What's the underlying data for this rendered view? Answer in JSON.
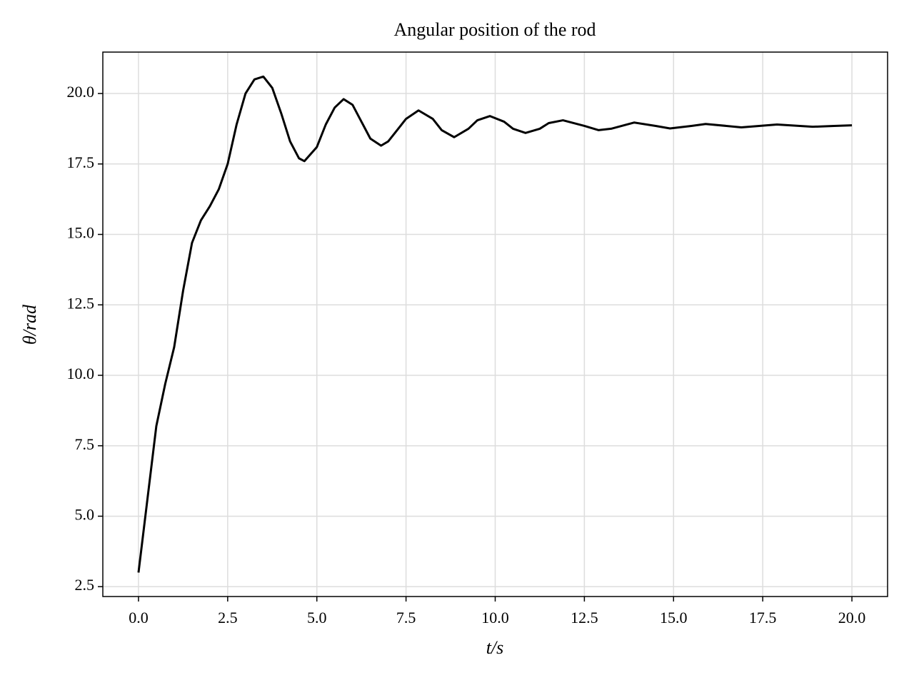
{
  "chart_data": {
    "type": "line",
    "title": "Angular position of the rod",
    "x_label": "t/s",
    "y_label": "θ/rad",
    "x": [
      0,
      0.25,
      0.5,
      0.75,
      1.0,
      1.25,
      1.5,
      1.75,
      2.0,
      2.25,
      2.5,
      2.75,
      3.0,
      3.25,
      3.5,
      3.75,
      4.0,
      4.25,
      4.5,
      4.65,
      5.0,
      5.25,
      5.5,
      5.75,
      6.0,
      6.25,
      6.5,
      6.8,
      7.0,
      7.25,
      7.5,
      7.85,
      8.25,
      8.5,
      8.85,
      9.25,
      9.5,
      9.85,
      10.25,
      10.5,
      10.85,
      11.25,
      11.5,
      11.9,
      12.5,
      12.9,
      13.25,
      13.9,
      14.5,
      14.9,
      15.5,
      15.9,
      16.9,
      17.9,
      18.9,
      19.5,
      20.0
    ],
    "series": [
      {
        "name": "theta",
        "color": "#000000",
        "values": [
          3.0,
          5.6,
          8.2,
          9.7,
          11.0,
          13.0,
          14.7,
          15.5,
          16.0,
          16.6,
          17.5,
          18.9,
          20.0,
          20.5,
          20.6,
          20.2,
          19.3,
          18.3,
          17.7,
          17.6,
          18.1,
          18.9,
          19.5,
          19.8,
          19.6,
          19.0,
          18.4,
          18.15,
          18.3,
          18.7,
          19.1,
          19.4,
          19.1,
          18.7,
          18.45,
          18.75,
          19.05,
          19.2,
          19.0,
          18.75,
          18.6,
          18.75,
          18.95,
          19.05,
          18.85,
          18.7,
          18.75,
          18.97,
          18.85,
          18.76,
          18.85,
          18.92,
          18.8,
          18.9,
          18.82,
          18.85,
          18.87
        ]
      }
    ],
    "xlim": [
      -1,
      21
    ],
    "ylim": [
      2.15,
      21.47
    ],
    "xticks": [
      {
        "value": 0,
        "label": "0.0"
      },
      2.5,
      {
        "value": 5,
        "label": "5.0"
      },
      7.5,
      {
        "value": 10,
        "label": "10.0"
      },
      12.5,
      {
        "value": 15,
        "label": "15.0"
      },
      17.5,
      {
        "value": 20,
        "label": "20.0"
      }
    ],
    "yticks": [
      2.5,
      {
        "value": 5,
        "label": "5.0"
      },
      7.5,
      {
        "value": 10,
        "label": "10.0"
      },
      12.5,
      {
        "value": 15,
        "label": "15.0"
      },
      17.5,
      {
        "value": 20,
        "label": "20.0"
      }
    ],
    "grid": true
  }
}
